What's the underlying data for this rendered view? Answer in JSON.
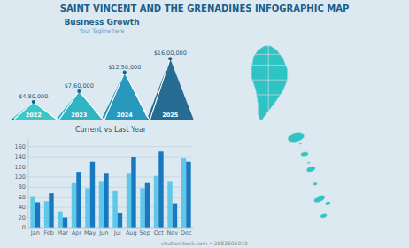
{
  "title": "SAINT VINCENT AND THE GRENADINES INFOGRAPHIC MAP",
  "annotations": [
    "shutterstock.com • 2583605019"
  ],
  "chart_data": [
    {
      "type": "triangle",
      "title": "Business Growth",
      "subtitle": "Your Tagline here",
      "categories": [
        "2022",
        "2023",
        "2024",
        "2025"
      ],
      "values": [
        480000,
        760000,
        1250000,
        1600000
      ],
      "value_labels": [
        "$4,80,000",
        "$7,60,000",
        "$12,50,000",
        "$16,00,000"
      ],
      "colors": [
        "#2ec4c4",
        "#1fafc0",
        "#1890b8",
        "#155f8a"
      ],
      "ylim": [
        0,
        2160000
      ],
      "data_labels": true,
      "tick_labels": false
    },
    {
      "type": "bar",
      "title": "Current vs Last Year",
      "categories": [
        "Jan",
        "Feb",
        "Mar",
        "Apr",
        "May",
        "Jun",
        "Jul",
        "Aug",
        "Sep",
        "Oct",
        "Nov",
        "Dec"
      ],
      "series": [
        {
          "color": "#5ec8e8",
          "values": [
            62,
            52,
            32,
            88,
            78,
            92,
            72,
            108,
            78,
            102,
            92,
            138
          ]
        },
        {
          "color": "#1878c0",
          "values": [
            50,
            68,
            20,
            110,
            130,
            108,
            28,
            140,
            88,
            150,
            48,
            130
          ]
        }
      ],
      "ylim": [
        0,
        175
      ],
      "yticks": [
        0,
        20,
        40,
        60,
        80,
        100,
        120,
        140,
        160
      ],
      "grid": true
    }
  ]
}
